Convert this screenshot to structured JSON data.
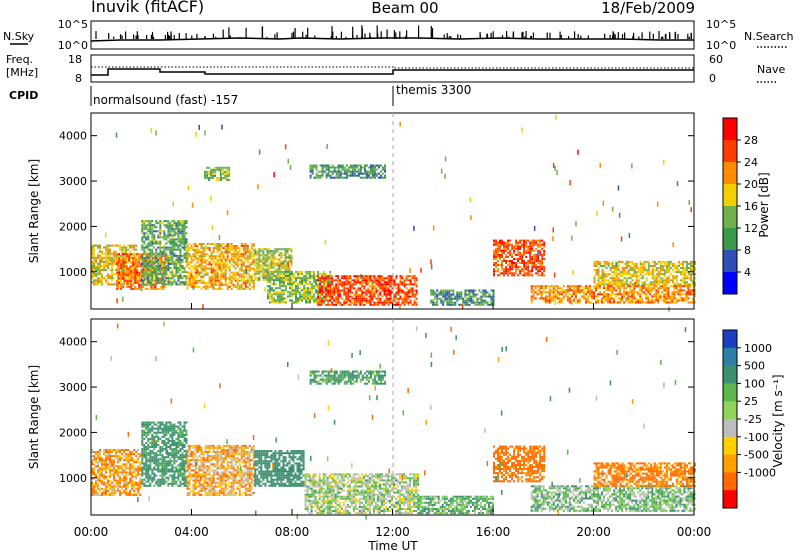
{
  "header": {
    "station": "Inuvik (fitACF)",
    "beam": "Beam 00",
    "date": "18/Feb/2009"
  },
  "strip": {
    "nsky_label": "N.Sky",
    "nsky_ticks": [
      "10^5",
      "10^0"
    ],
    "nsearch_label": "N.Search",
    "nsearch_ticks": [
      "10^5",
      "10^0"
    ],
    "freq_label_1": "Freq.",
    "freq_label_2": "[MHz]",
    "freq_ticks": [
      "18",
      "8"
    ],
    "nave_label": "Nave",
    "nave_ticks": [
      "60",
      "0"
    ],
    "cpid_label": "CPID",
    "cpid_1": "normalsound (fast) -157",
    "cpid_2": "themis 3300"
  },
  "colorbars": {
    "power": {
      "title": "Power [dB]",
      "ticks": [
        "28",
        "24",
        "20",
        "16",
        "12",
        "8",
        "4"
      ],
      "colors": [
        "#0000ff",
        "#2f4fb7",
        "#3a9a4a",
        "#6fb04d",
        "#f4d000",
        "#ff8c00",
        "#ff3b00",
        "#ff0000"
      ]
    },
    "velocity": {
      "title": "Velocity [m s⁻¹]",
      "ticks": [
        "1000",
        "500",
        "100",
        "25",
        "-25",
        "-100",
        "-500",
        "-1000"
      ],
      "colors": [
        "#1a3fbf",
        "#2e7fa8",
        "#3c9070",
        "#5cb84c",
        "#8fd35a",
        "#bdbdbd",
        "#ffcf00",
        "#ffa000",
        "#ff6a00",
        "#ff0000"
      ]
    }
  },
  "axes": {
    "ylabel": "Slant Range [km]",
    "yticks": [
      "4000",
      "3000",
      "2000",
      "1000"
    ],
    "xticks": [
      "00:00",
      "04:00",
      "08:00",
      "12:00",
      "16:00",
      "20:00",
      "00:00"
    ],
    "xlabel": "Time UT"
  },
  "chart_data": [
    {
      "type": "heatmap",
      "title": "",
      "xlabel": "",
      "ylabel": "Slant Range [km]",
      "xlim_hours": [
        0,
        24
      ],
      "ylim_km": [
        180,
        4500
      ],
      "colorbar": "Power [dB]",
      "regions": [
        {
          "t": [
            0.0,
            1.8
          ],
          "r": [
            700,
            1600
          ],
          "value": 18
        },
        {
          "t": [
            1.0,
            3.0
          ],
          "r": [
            600,
            1400
          ],
          "value": 24
        },
        {
          "t": [
            2.0,
            3.8
          ],
          "r": [
            700,
            2100
          ],
          "value": 12
        },
        {
          "t": [
            3.8,
            6.5
          ],
          "r": [
            600,
            1600
          ],
          "value": 20
        },
        {
          "t": [
            6.5,
            8.0
          ],
          "r": [
            800,
            1500
          ],
          "value": 16
        },
        {
          "t": [
            7.0,
            9.5
          ],
          "r": [
            300,
            1000
          ],
          "value": 14
        },
        {
          "t": [
            9.0,
            13.0
          ],
          "r": [
            250,
            900
          ],
          "value": 26
        },
        {
          "t": [
            8.7,
            11.7
          ],
          "r": [
            3050,
            3350
          ],
          "value": 10
        },
        {
          "t": [
            4.5,
            5.5
          ],
          "r": [
            3000,
            3300
          ],
          "value": 14
        },
        {
          "t": [
            13.5,
            16.0
          ],
          "r": [
            250,
            600
          ],
          "value": 10
        },
        {
          "t": [
            16.0,
            18.0
          ],
          "r": [
            900,
            1700
          ],
          "value": 26
        },
        {
          "t": [
            17.5,
            24.0
          ],
          "r": [
            300,
            700
          ],
          "value": 22
        },
        {
          "t": [
            20.0,
            24.0
          ],
          "r": [
            700,
            1200
          ],
          "value": 18
        }
      ]
    },
    {
      "type": "heatmap",
      "title": "",
      "xlabel": "Time UT",
      "ylabel": "Slant Range [km]",
      "xlim_hours": [
        0,
        24
      ],
      "ylim_km": [
        180,
        4500
      ],
      "colorbar": "Velocity [m s⁻¹]",
      "regions": [
        {
          "t": [
            0.0,
            2.0
          ],
          "r": [
            600,
            1600
          ],
          "value": -80
        },
        {
          "t": [
            2.0,
            3.8
          ],
          "r": [
            800,
            2200
          ],
          "value": 150
        },
        {
          "t": [
            3.8,
            6.5
          ],
          "r": [
            600,
            1700
          ],
          "value": -60
        },
        {
          "t": [
            6.5,
            8.5
          ],
          "r": [
            800,
            1600
          ],
          "value": 300
        },
        {
          "t": [
            8.5,
            13.0
          ],
          "r": [
            200,
            1100
          ],
          "value": 30
        },
        {
          "t": [
            8.7,
            11.7
          ],
          "r": [
            3050,
            3350
          ],
          "value": 120
        },
        {
          "t": [
            13.0,
            16.0
          ],
          "r": [
            200,
            600
          ],
          "value": 80
        },
        {
          "t": [
            16.0,
            18.0
          ],
          "r": [
            900,
            1700
          ],
          "value": -150
        },
        {
          "t": [
            17.5,
            24.0
          ],
          "r": [
            250,
            800
          ],
          "value": 60
        },
        {
          "t": [
            20.0,
            24.0
          ],
          "r": [
            800,
            1300
          ],
          "value": -120
        }
      ]
    }
  ]
}
